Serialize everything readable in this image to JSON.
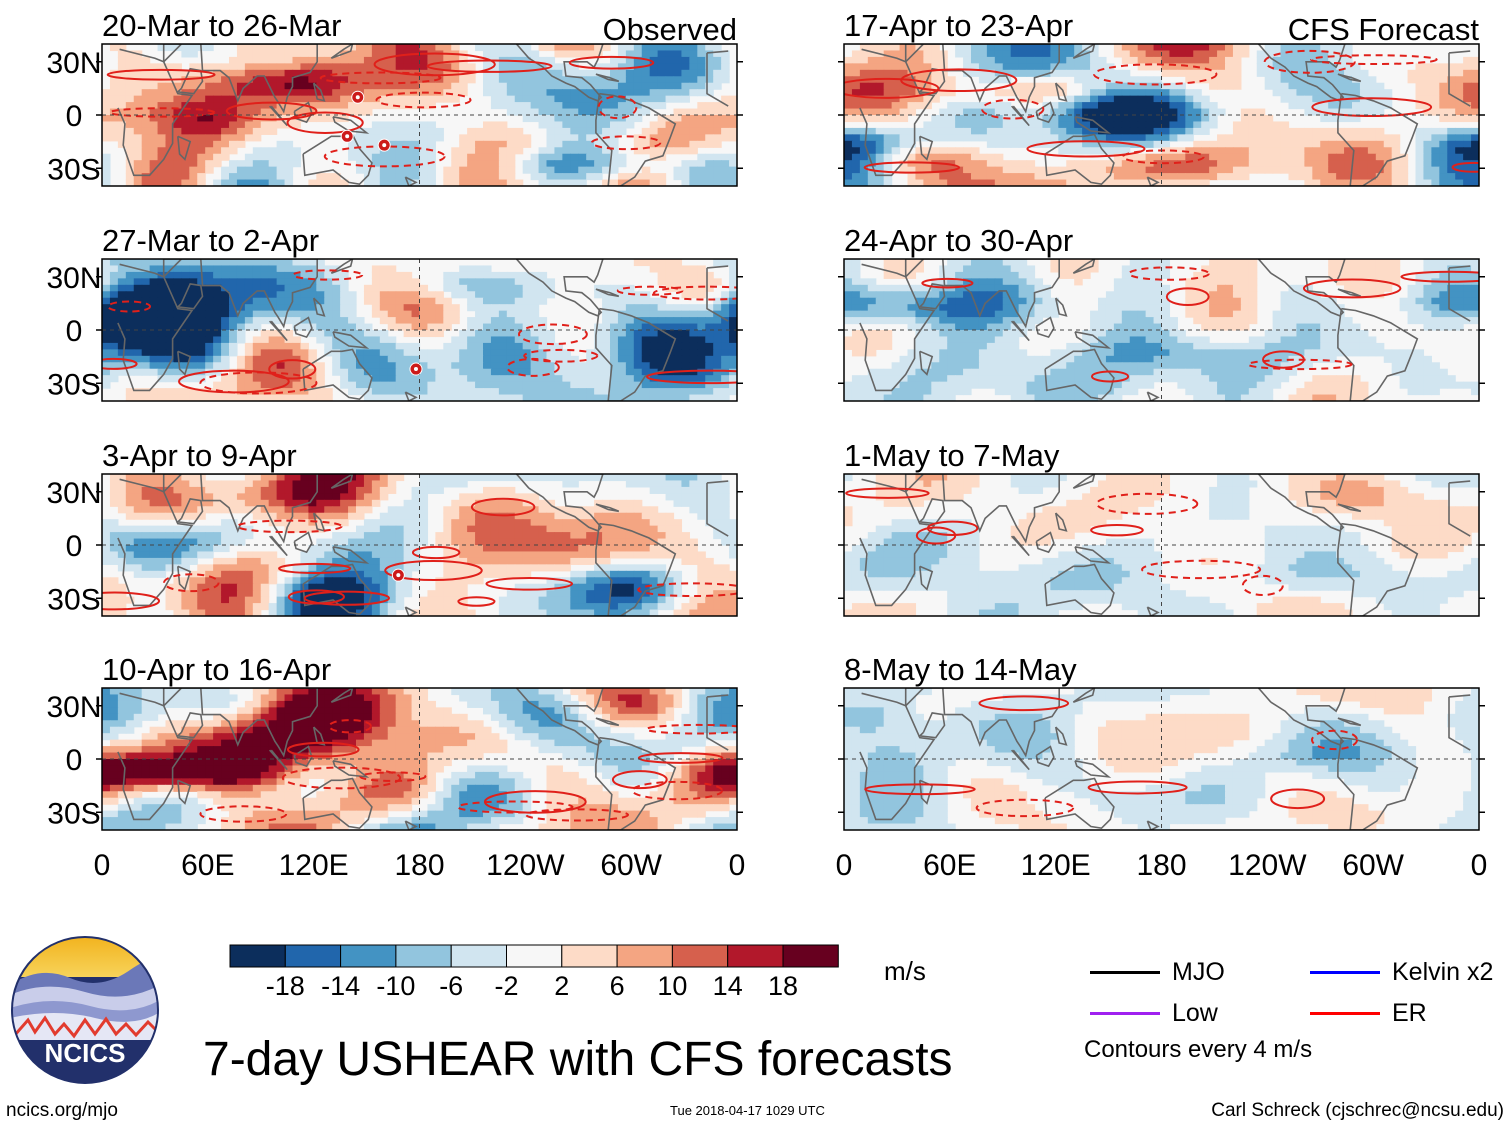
{
  "figure_title": "7-day USHEAR with CFS forecasts",
  "section_labels": {
    "observed": "Observed",
    "forecast": "CFS Forecast"
  },
  "colorbar": {
    "units": "m/s",
    "ticks": [
      "-18",
      "-14",
      "-10",
      "-6",
      "-2",
      "2",
      "6",
      "10",
      "14",
      "18"
    ],
    "colors": [
      "#0c2e5c",
      "#2166ac",
      "#4393c3",
      "#92c5de",
      "#d1e5f0",
      "#f7f7f7",
      "#fddbc7",
      "#f4a582",
      "#d6604d",
      "#b2182b",
      "#67001f"
    ]
  },
  "legend": {
    "items": [
      {
        "label": "MJO",
        "color": "#000000"
      },
      {
        "label": "Kelvin x2",
        "color": "#0000ff"
      },
      {
        "label": "Low",
        "color": "#a020f0"
      },
      {
        "label": "ER",
        "color": "#ff0000"
      }
    ],
    "contour_note": "Contours every 4 m/s"
  },
  "logo": {
    "text": "NCICS"
  },
  "credits": {
    "left": "ncics.org/mjo",
    "center": "Tue 2018-04-17 1029 UTC",
    "right": "Carl Schreck (cjschrec@ncsu.edu)"
  },
  "chart_data": {
    "type": "heatmap",
    "variable": "7-day USHEAR",
    "units": "m/s",
    "x_ticks": [
      "0",
      "60E",
      "120E",
      "180",
      "120W",
      "60W",
      "0"
    ],
    "y_ticks": [
      "30N",
      "0",
      "30S"
    ],
    "panels": [
      {
        "title": "20-Mar to 26-Mar",
        "group": "observed",
        "column": 0,
        "row": 0,
        "intensity": 1.0,
        "seed": 11,
        "storms": [
          {
            "lon": 145,
            "lat": 10
          },
          {
            "lon": 139,
            "lat": -12
          },
          {
            "lon": 160,
            "lat": -17
          }
        ]
      },
      {
        "title": "27-Mar to 2-Apr",
        "group": "observed",
        "column": 0,
        "row": 1,
        "intensity": 1.0,
        "seed": 23,
        "storms": [
          {
            "lon": 178,
            "lat": -22
          }
        ]
      },
      {
        "title": "3-Apr to 9-Apr",
        "group": "observed",
        "column": 0,
        "row": 2,
        "intensity": 1.0,
        "seed": 37,
        "storms": [
          {
            "lon": 168,
            "lat": -17
          }
        ]
      },
      {
        "title": "10-Apr to 16-Apr",
        "group": "observed",
        "column": 0,
        "row": 3,
        "intensity": 0.95,
        "seed": 41,
        "storms": []
      },
      {
        "title": "17-Apr to 23-Apr",
        "group": "forecast",
        "column": 1,
        "row": 0,
        "intensity": 0.9,
        "seed": 53,
        "storms": []
      },
      {
        "title": "24-Apr to 30-Apr",
        "group": "forecast",
        "column": 1,
        "row": 1,
        "intensity": 0.6,
        "seed": 67,
        "storms": []
      },
      {
        "title": "1-May to 7-May",
        "group": "forecast",
        "column": 1,
        "row": 2,
        "intensity": 0.45,
        "seed": 71,
        "storms": []
      },
      {
        "title": "8-May to 14-May",
        "group": "forecast",
        "column": 1,
        "row": 3,
        "intensity": 0.35,
        "seed": 83,
        "storms": []
      }
    ]
  }
}
